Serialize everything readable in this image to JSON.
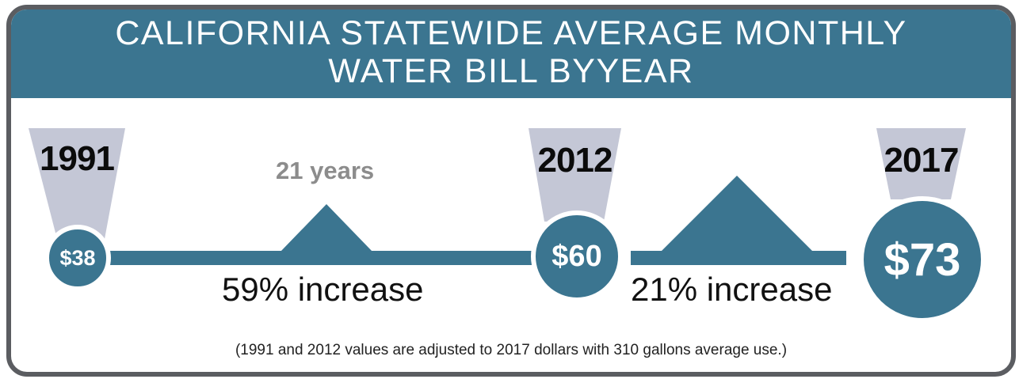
{
  "title": {
    "line1": "CALIFORNIA STATEWIDE AVERAGE MONTHLY",
    "line2": "WATER BILL BYYEAR"
  },
  "timeline": {
    "points": [
      {
        "year": "1991",
        "amount": "$38"
      },
      {
        "year": "2012",
        "amount": "$60"
      },
      {
        "year": "2017",
        "amount": "$73"
      }
    ],
    "span_label": "21 years",
    "increases": [
      "59% increase",
      "21% increase"
    ]
  },
  "footnote": "(1991 and 2012 values are adjusted to 2017 dollars with 310 gallons average use.)",
  "colors": {
    "teal": "#3b7590",
    "lavender": "#c4c7d6",
    "frame": "#5b5d61"
  }
}
